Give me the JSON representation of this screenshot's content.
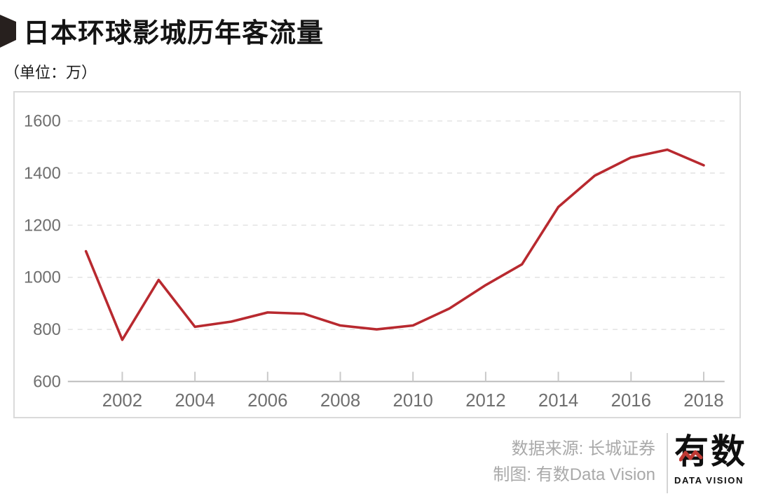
{
  "header": {
    "title": "日本环球影城历年客流量",
    "subtitle": "（单位：万）"
  },
  "chart_data": {
    "type": "line",
    "title": "日本环球影城历年客流量",
    "unit_label": "（单位：万）",
    "x": [
      2001,
      2002,
      2003,
      2004,
      2005,
      2006,
      2007,
      2008,
      2009,
      2010,
      2011,
      2012,
      2013,
      2014,
      2015,
      2016,
      2017,
      2018
    ],
    "values": [
      1100,
      760,
      990,
      810,
      830,
      865,
      860,
      815,
      800,
      815,
      880,
      970,
      1050,
      1270,
      1390,
      1460,
      1490,
      1430
    ],
    "series_name": "客流量",
    "xlabel": "",
    "ylabel": "",
    "ylim": [
      600,
      1600
    ],
    "yticks": [
      600,
      800,
      1000,
      1200,
      1400,
      1600
    ],
    "xticks": [
      2002,
      2004,
      2006,
      2008,
      2010,
      2012,
      2014,
      2016,
      2018
    ],
    "grid": "horizontal-dashed",
    "legend": "none"
  },
  "footer": {
    "source_label": "数据来源: 长城证券",
    "credit_label": "制图: 有数Data Vision",
    "logo": {
      "name": "有数",
      "subtitle": "DATA VISION"
    }
  },
  "colors": {
    "line": "#b8292f",
    "grid": "#e2e2e2",
    "axis": "#b8b8b8",
    "tick": "#c9c9c9",
    "axis_label": "#6f6f6f",
    "title_text": "#141414",
    "credit_text": "#a9a9a9",
    "card_border": "#dadada",
    "marker": "#27201e",
    "logo_wave": "#bf3a34"
  }
}
